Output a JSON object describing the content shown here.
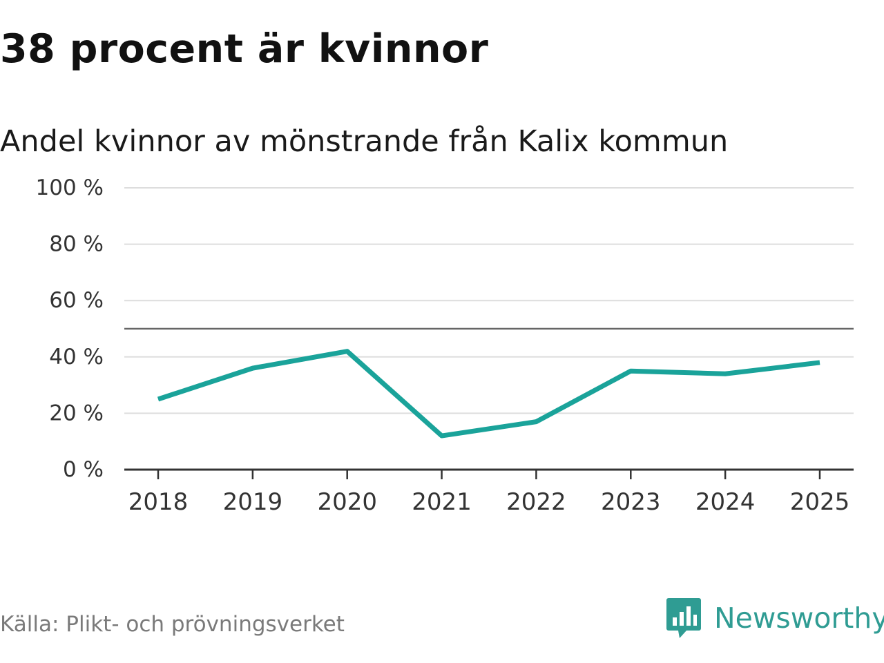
{
  "header": {
    "title": "38 procent är kvinnor",
    "subtitle": "Andel kvinnor av mönstrande från Kalix kommun"
  },
  "footer": {
    "source": "Källa: Plikt- och prövningsverket",
    "brand": "Newsworthy",
    "brand_icon": "bar-chart-speech-bubble-icon"
  },
  "colors": {
    "line": "#1aa39a",
    "grid": "#dddddd",
    "reference": "#666666",
    "axis": "#333333",
    "tick_label": "#333333",
    "brand": "#2f9c93"
  },
  "chart_data": {
    "type": "line",
    "title": "38 procent är kvinnor",
    "subtitle": "Andel kvinnor av mönstrande från Kalix kommun",
    "xlabel": "",
    "ylabel": "",
    "categories": [
      "2018",
      "2019",
      "2020",
      "2021",
      "2022",
      "2023",
      "2024",
      "2025"
    ],
    "series": [
      {
        "values": [
          25,
          36,
          42,
          12,
          17,
          35,
          34,
          38
        ]
      }
    ],
    "ylim": [
      0,
      100
    ],
    "yticks": [
      0,
      20,
      40,
      60,
      80,
      100
    ],
    "ytick_labels": [
      "0 %",
      "20 %",
      "40 %",
      "60 %",
      "80 %",
      "100 %"
    ],
    "reference_line": 50,
    "grid": true,
    "legend": "none"
  }
}
